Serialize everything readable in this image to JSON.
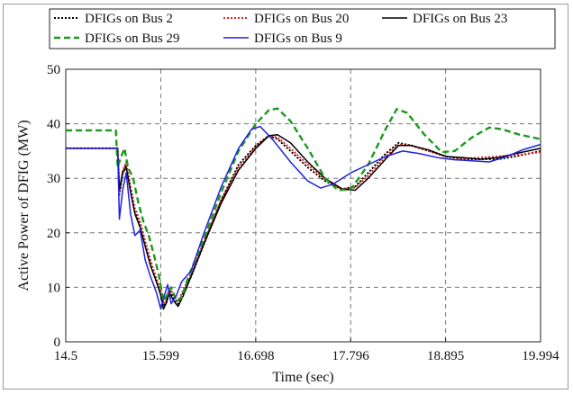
{
  "chart_data": {
    "type": "line",
    "title": "",
    "xlabel": "Time (sec)",
    "ylabel": "Active Power of DFIG (MW)",
    "xlim": [
      14.5,
      19.994
    ],
    "ylim": [
      0,
      50
    ],
    "xticks": [
      "14.5",
      "15.599",
      "16.698",
      "17.796",
      "18.895",
      "19.994"
    ],
    "yticks": [
      "0",
      "10",
      "20",
      "30",
      "40",
      "50"
    ],
    "grid": true,
    "legend_position": "top",
    "series": [
      {
        "name": "DFIGs on Bus 2",
        "color": "#000000",
        "style": "dotted",
        "points": [
          [
            14.5,
            35.5
          ],
          [
            15.1,
            35.5
          ],
          [
            15.12,
            27
          ],
          [
            15.16,
            31
          ],
          [
            15.2,
            32.5
          ],
          [
            15.25,
            28
          ],
          [
            15.3,
            24
          ],
          [
            15.36,
            21.5
          ],
          [
            15.42,
            18
          ],
          [
            15.48,
            14.5
          ],
          [
            15.55,
            11
          ],
          [
            15.6,
            9
          ],
          [
            15.63,
            6.5
          ],
          [
            15.66,
            7
          ],
          [
            15.7,
            9.5
          ],
          [
            15.75,
            8
          ],
          [
            15.8,
            7
          ],
          [
            15.86,
            9
          ],
          [
            15.95,
            12
          ],
          [
            16.1,
            18
          ],
          [
            16.3,
            26
          ],
          [
            16.5,
            32.5
          ],
          [
            16.7,
            36
          ],
          [
            16.85,
            37.8
          ],
          [
            16.95,
            37.2
          ],
          [
            17.1,
            35
          ],
          [
            17.3,
            32
          ],
          [
            17.5,
            29.5
          ],
          [
            17.7,
            28
          ],
          [
            17.85,
            28.5
          ],
          [
            18.0,
            31
          ],
          [
            18.2,
            34.5
          ],
          [
            18.35,
            36.5
          ],
          [
            18.5,
            36
          ],
          [
            18.7,
            35
          ],
          [
            18.9,
            34
          ],
          [
            19.1,
            33.5
          ],
          [
            19.3,
            33.5
          ],
          [
            19.5,
            33.5
          ],
          [
            19.7,
            34
          ],
          [
            19.994,
            35
          ]
        ]
      },
      {
        "name": "DFIGs on Bus 20",
        "color": "#e02020",
        "style": "dotted",
        "points": [
          [
            14.5,
            35.5
          ],
          [
            15.1,
            35.5
          ],
          [
            15.12,
            27.5
          ],
          [
            15.16,
            31.5
          ],
          [
            15.2,
            33
          ],
          [
            15.25,
            28.5
          ],
          [
            15.3,
            24.5
          ],
          [
            15.36,
            22
          ],
          [
            15.42,
            18.5
          ],
          [
            15.48,
            15
          ],
          [
            15.55,
            11.5
          ],
          [
            15.6,
            9.5
          ],
          [
            15.63,
            7
          ],
          [
            15.66,
            7.5
          ],
          [
            15.7,
            10
          ],
          [
            15.75,
            8.5
          ],
          [
            15.8,
            7.5
          ],
          [
            15.86,
            9.5
          ],
          [
            15.95,
            12.5
          ],
          [
            16.1,
            18.5
          ],
          [
            16.3,
            26
          ],
          [
            16.5,
            32
          ],
          [
            16.7,
            35.8
          ],
          [
            16.85,
            37.8
          ],
          [
            16.95,
            37.5
          ],
          [
            17.1,
            35.5
          ],
          [
            17.3,
            32.5
          ],
          [
            17.5,
            29.8
          ],
          [
            17.7,
            28
          ],
          [
            17.85,
            28.3
          ],
          [
            18.0,
            30.5
          ],
          [
            18.2,
            34
          ],
          [
            18.35,
            36.2
          ],
          [
            18.5,
            36
          ],
          [
            18.7,
            35
          ],
          [
            18.9,
            34
          ],
          [
            19.1,
            33.6
          ],
          [
            19.3,
            33.8
          ],
          [
            19.5,
            34
          ],
          [
            19.7,
            34.2
          ],
          [
            19.994,
            34.8
          ]
        ]
      },
      {
        "name": "DFIGs on Bus 23",
        "color": "#000000",
        "style": "solid",
        "points": [
          [
            14.5,
            35.5
          ],
          [
            15.1,
            35.5
          ],
          [
            15.12,
            28
          ],
          [
            15.16,
            31
          ],
          [
            15.2,
            32
          ],
          [
            15.25,
            27.5
          ],
          [
            15.3,
            23.5
          ],
          [
            15.36,
            21
          ],
          [
            15.42,
            17.5
          ],
          [
            15.48,
            14
          ],
          [
            15.55,
            11
          ],
          [
            15.6,
            8.5
          ],
          [
            15.63,
            6
          ],
          [
            15.66,
            7
          ],
          [
            15.7,
            9
          ],
          [
            15.75,
            7.5
          ],
          [
            15.8,
            6.5
          ],
          [
            15.86,
            8.5
          ],
          [
            15.95,
            12
          ],
          [
            16.1,
            18
          ],
          [
            16.3,
            25.5
          ],
          [
            16.5,
            31.5
          ],
          [
            16.7,
            35.5
          ],
          [
            16.85,
            37.8
          ],
          [
            16.95,
            38
          ],
          [
            17.1,
            36.5
          ],
          [
            17.3,
            33
          ],
          [
            17.5,
            30
          ],
          [
            17.7,
            28
          ],
          [
            17.85,
            27.8
          ],
          [
            18.0,
            30
          ],
          [
            18.2,
            33.5
          ],
          [
            18.35,
            36
          ],
          [
            18.5,
            36
          ],
          [
            18.7,
            35.2
          ],
          [
            18.9,
            34
          ],
          [
            19.1,
            33.8
          ],
          [
            19.3,
            33.5
          ],
          [
            19.5,
            33.8
          ],
          [
            19.7,
            34.5
          ],
          [
            19.994,
            35.5
          ]
        ]
      },
      {
        "name": "DFIGs on Bus 29",
        "color": "#1a9a1a",
        "style": "dashed",
        "points": [
          [
            14.5,
            38.8
          ],
          [
            15.08,
            38.8
          ],
          [
            15.1,
            32
          ],
          [
            15.13,
            33.5
          ],
          [
            15.18,
            35.5
          ],
          [
            15.22,
            32
          ],
          [
            15.28,
            30
          ],
          [
            15.34,
            25.5
          ],
          [
            15.4,
            22
          ],
          [
            15.46,
            19.5
          ],
          [
            15.52,
            16
          ],
          [
            15.58,
            12
          ],
          [
            15.63,
            7.5
          ],
          [
            15.67,
            8.5
          ],
          [
            15.72,
            10
          ],
          [
            15.78,
            7.5
          ],
          [
            15.84,
            8
          ],
          [
            15.92,
            12
          ],
          [
            16.1,
            19
          ],
          [
            16.3,
            27.5
          ],
          [
            16.5,
            35
          ],
          [
            16.7,
            40
          ],
          [
            16.85,
            42.5
          ],
          [
            16.95,
            42.8
          ],
          [
            17.1,
            40.5
          ],
          [
            17.3,
            35.5
          ],
          [
            17.5,
            30
          ],
          [
            17.65,
            27.8
          ],
          [
            17.8,
            28
          ],
          [
            18.0,
            32.5
          ],
          [
            18.2,
            39
          ],
          [
            18.33,
            42.7
          ],
          [
            18.45,
            42
          ],
          [
            18.65,
            38
          ],
          [
            18.85,
            34.8
          ],
          [
            19.0,
            35
          ],
          [
            19.2,
            37.5
          ],
          [
            19.4,
            39.3
          ],
          [
            19.55,
            39
          ],
          [
            19.75,
            38
          ],
          [
            19.994,
            37.2
          ]
        ]
      },
      {
        "name": "DFIGs on Bus 9",
        "color": "#2020e0",
        "style": "solid",
        "points": [
          [
            14.5,
            35.5
          ],
          [
            15.1,
            35.5
          ],
          [
            15.12,
            22.5
          ],
          [
            15.16,
            28
          ],
          [
            15.2,
            31
          ],
          [
            15.25,
            23.5
          ],
          [
            15.3,
            19.5
          ],
          [
            15.36,
            20.5
          ],
          [
            15.42,
            15
          ],
          [
            15.48,
            12
          ],
          [
            15.55,
            9
          ],
          [
            15.6,
            6
          ],
          [
            15.64,
            8.5
          ],
          [
            15.68,
            10.5
          ],
          [
            15.72,
            7
          ],
          [
            15.78,
            8.5
          ],
          [
            15.84,
            11
          ],
          [
            15.95,
            13
          ],
          [
            16.1,
            20
          ],
          [
            16.3,
            28.5
          ],
          [
            16.5,
            35.5
          ],
          [
            16.65,
            39
          ],
          [
            16.75,
            39.5
          ],
          [
            16.9,
            37
          ],
          [
            17.1,
            33
          ],
          [
            17.3,
            29.5
          ],
          [
            17.45,
            28.2
          ],
          [
            17.6,
            29
          ],
          [
            17.8,
            31
          ],
          [
            18.0,
            32.5
          ],
          [
            18.2,
            34
          ],
          [
            18.4,
            35
          ],
          [
            18.6,
            34.5
          ],
          [
            18.8,
            33.8
          ],
          [
            19.0,
            33.4
          ],
          [
            19.2,
            33.2
          ],
          [
            19.4,
            33
          ],
          [
            19.6,
            34
          ],
          [
            19.8,
            35.3
          ],
          [
            19.994,
            36.2
          ]
        ]
      }
    ]
  }
}
